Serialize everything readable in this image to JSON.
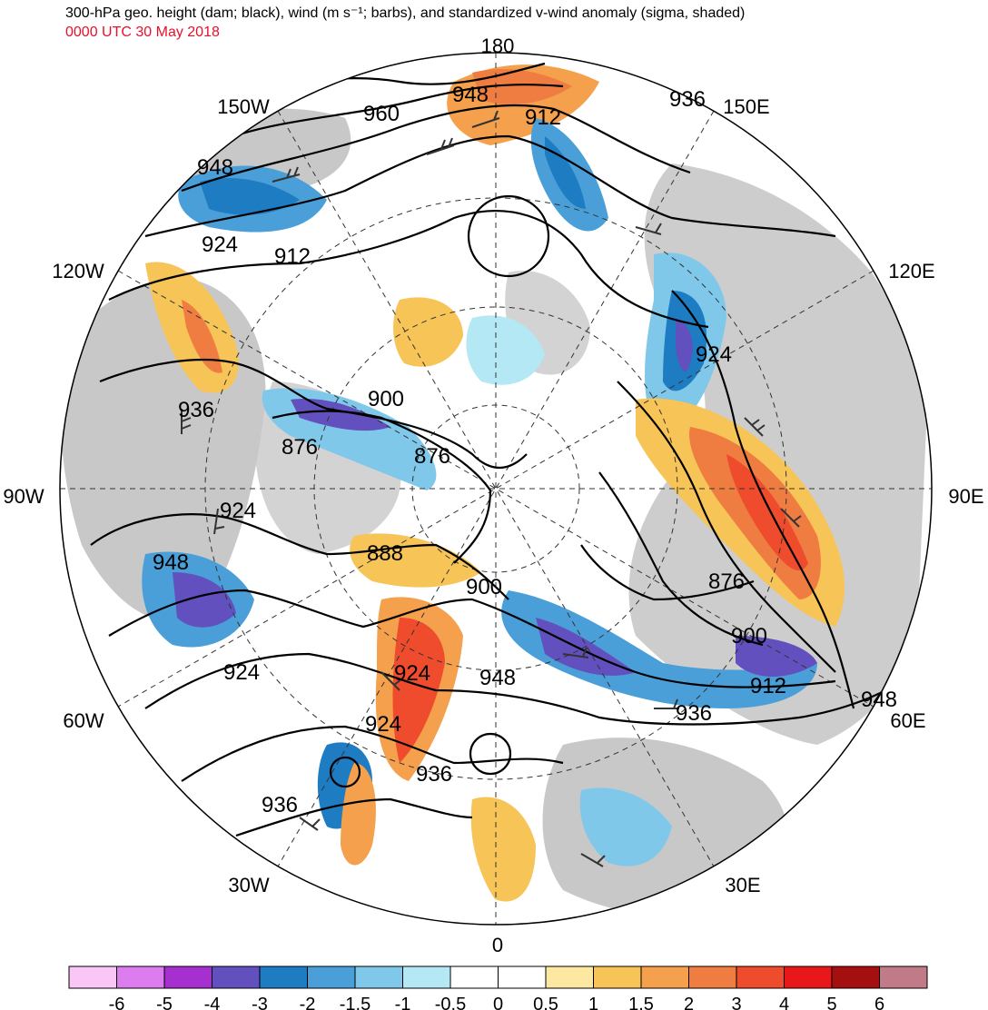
{
  "title": "300-hPa geo. height (dam; black), wind (m s⁻¹; barbs), and standardized v-wind anomaly (sigma, shaded)",
  "subtitle": "0000 UTC 30 May 2018",
  "subtitle_color": "#e8102a",
  "projection": "north-polar-stereographic",
  "longitude_labels": [
    "180",
    "150E",
    "120E",
    "90E",
    "60E",
    "30E",
    "0",
    "30W",
    "60W",
    "90W",
    "120W",
    "150W"
  ],
  "contour_labels": [
    {
      "text": "948"
    },
    {
      "text": "960"
    },
    {
      "text": "912"
    },
    {
      "text": "936"
    },
    {
      "text": "948"
    },
    {
      "text": "924"
    },
    {
      "text": "912"
    },
    {
      "text": "924"
    },
    {
      "text": "936"
    },
    {
      "text": "900"
    },
    {
      "text": "876"
    },
    {
      "text": "876"
    },
    {
      "text": "924"
    },
    {
      "text": "948"
    },
    {
      "text": "888"
    },
    {
      "text": "900"
    },
    {
      "text": "876"
    },
    {
      "text": "900"
    },
    {
      "text": "924"
    },
    {
      "text": "948"
    },
    {
      "text": "936"
    },
    {
      "text": "912"
    },
    {
      "text": "924"
    },
    {
      "text": "948"
    },
    {
      "text": "924"
    },
    {
      "text": "936"
    },
    {
      "text": "936"
    }
  ],
  "colorbar": {
    "ticks": [
      "-6",
      "-5",
      "-4",
      "-3",
      "-2",
      "-1.5",
      "-1",
      "-0.5",
      "0",
      "0.5",
      "1",
      "1.5",
      "2",
      "3",
      "4",
      "5",
      "6"
    ],
    "colors": [
      "#f9c6f5",
      "#dc7cef",
      "#a52fcf",
      "#6150bd",
      "#1e7cc3",
      "#4a9fd8",
      "#80c8ea",
      "#b3e8f4",
      "#ffffff",
      "#ffffff",
      "#fce8a0",
      "#f7c457",
      "#f4a04c",
      "#ef7d41",
      "#ee4c2c",
      "#e8181a",
      "#a40f10",
      "#c17a88"
    ]
  },
  "colors": {
    "land": "#c8c8c8",
    "contour": "#000000",
    "barb": "#333333"
  }
}
